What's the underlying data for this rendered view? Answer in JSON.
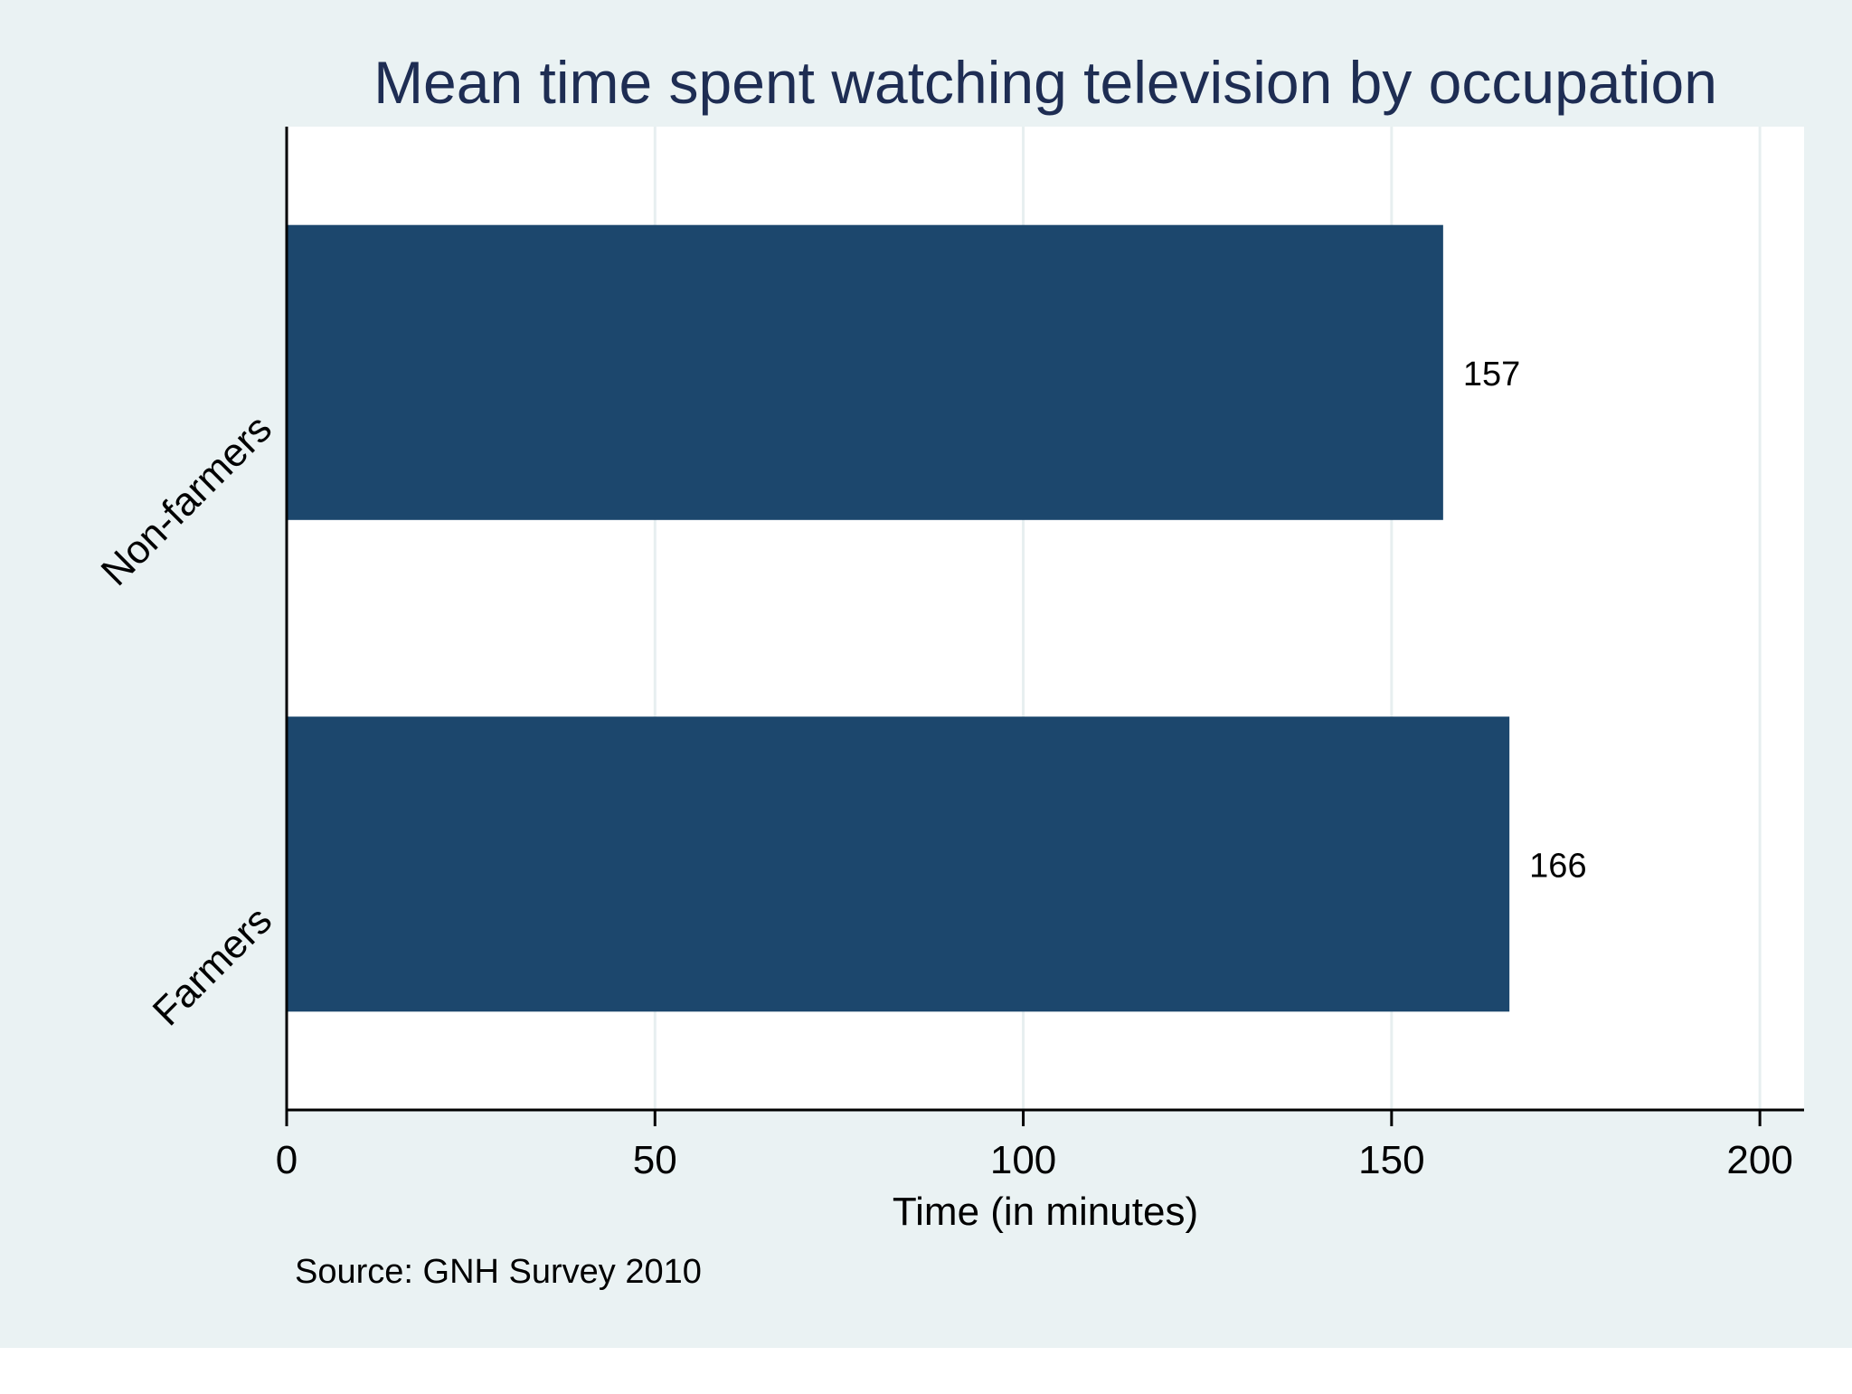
{
  "colors": {
    "background": "#EAF2F3",
    "plot_area": "#FFFFFF",
    "bar": "#1C476D",
    "title": "#1E2D53",
    "text": "#000000",
    "grid": "#E7EFF0",
    "axis": "#000000"
  },
  "chart_data": {
    "type": "bar",
    "orientation": "horizontal",
    "title": "Mean time spent watching television by occupation",
    "xlabel": "Time (in minutes)",
    "ylabel": "",
    "categories": [
      "Non-farmers",
      "Farmers"
    ],
    "values": [
      157,
      166
    ],
    "data_labels": [
      "157",
      "166"
    ],
    "xlim": [
      0,
      206
    ],
    "xticks": [
      0,
      50,
      100,
      150,
      200
    ],
    "xtick_labels": [
      "0",
      "50",
      "100",
      "150",
      "200"
    ],
    "grid": true,
    "note": "Source: GNH Survey 2010"
  }
}
